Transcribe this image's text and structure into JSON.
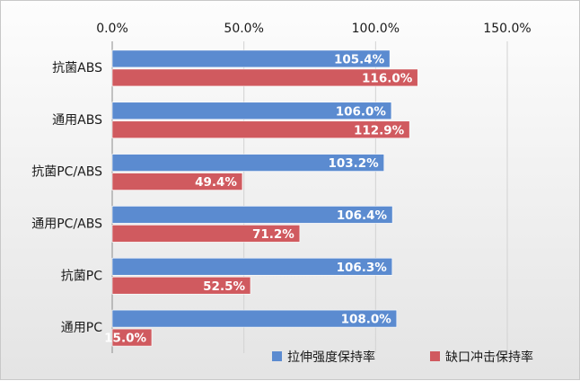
{
  "chart_data": {
    "type": "bar",
    "orientation": "horizontal",
    "categories": [
      "抗菌ABS",
      "通用ABS",
      "抗菌PC/ABS",
      "通用PC/ABS",
      "抗菌PC",
      "通用PC"
    ],
    "series": [
      {
        "name": "拉伸强度保持率",
        "color": "#5b8bd0",
        "values": [
          105.4,
          106.0,
          103.2,
          106.4,
          106.3,
          108.0
        ],
        "labels": [
          "105.4%",
          "106.0%",
          "103.2%",
          "106.4%",
          "106.3%",
          "108.0%"
        ]
      },
      {
        "name": "缺口冲击保持率",
        "color": "#d05a5f",
        "values": [
          116.0,
          112.9,
          49.4,
          71.2,
          52.5,
          15.0
        ],
        "labels": [
          "116.0%",
          "112.9%",
          "49.4%",
          "71.2%",
          "52.5%",
          "15.0%"
        ]
      }
    ],
    "xlim": [
      0,
      150
    ],
    "x_ticks": [
      "0.0%",
      "50.0%",
      "100.0%",
      "150.0%"
    ],
    "x_tick_values": [
      0,
      50,
      100,
      150
    ],
    "x_axis_position": "top",
    "grid": true,
    "legend_position": "bottom-right"
  }
}
